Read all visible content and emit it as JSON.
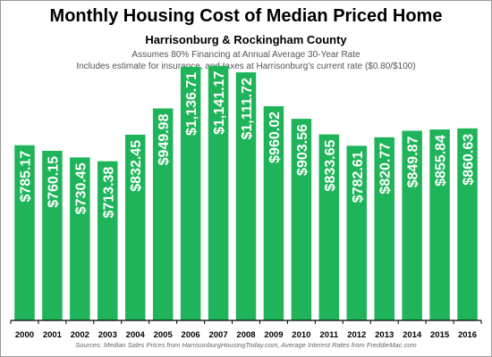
{
  "header": {
    "title": "Monthly Housing Cost of Median Priced Home",
    "subtitle": "Harrisonburg & Rockingham County",
    "note_1": "Assumes 80% Financing at Annual Average 30-Year Rate",
    "note_2": "Includes estimate for insurance, and taxes at Harrisonburg's current rate ($0.80/$100)"
  },
  "footer": {
    "source": "Sources: Median Sales Prices from HarrisonburgHousingToday.com, Average Interest Rates from FreddieMac.com"
  },
  "colors": {
    "bar": "#1fb45a",
    "label": "#ffffff",
    "axis": "#000000"
  },
  "chart_data": {
    "type": "bar",
    "title": "Monthly Housing Cost of Median Priced Home",
    "subtitle": "Harrisonburg & Rockingham County",
    "categories": [
      "2000",
      "2001",
      "2002",
      "2003",
      "2004",
      "2005",
      "2006",
      "2007",
      "2008",
      "2009",
      "2010",
      "2011",
      "2012",
      "2013",
      "2014",
      "2015",
      "2016"
    ],
    "values": [
      785.17,
      760.15,
      730.45,
      713.38,
      832.45,
      949.98,
      1136.71,
      1141.17,
      1111.72,
      960.02,
      903.56,
      833.65,
      782.61,
      820.77,
      849.87,
      855.84,
      860.63
    ],
    "data_labels": [
      "$785.17",
      "$760.15",
      "$730.45",
      "$713.38",
      "$832.45",
      "$949.98",
      "$1,136.71",
      "$1,141.17",
      "$1,111.72",
      "$960.02",
      "$903.56",
      "$833.65",
      "$782.61",
      "$820.77",
      "$849.87",
      "$855.84",
      "$860.63"
    ],
    "xlabel": "",
    "ylabel": "",
    "ylim": [
      0,
      1200
    ],
    "grid": false,
    "legend": "none"
  }
}
